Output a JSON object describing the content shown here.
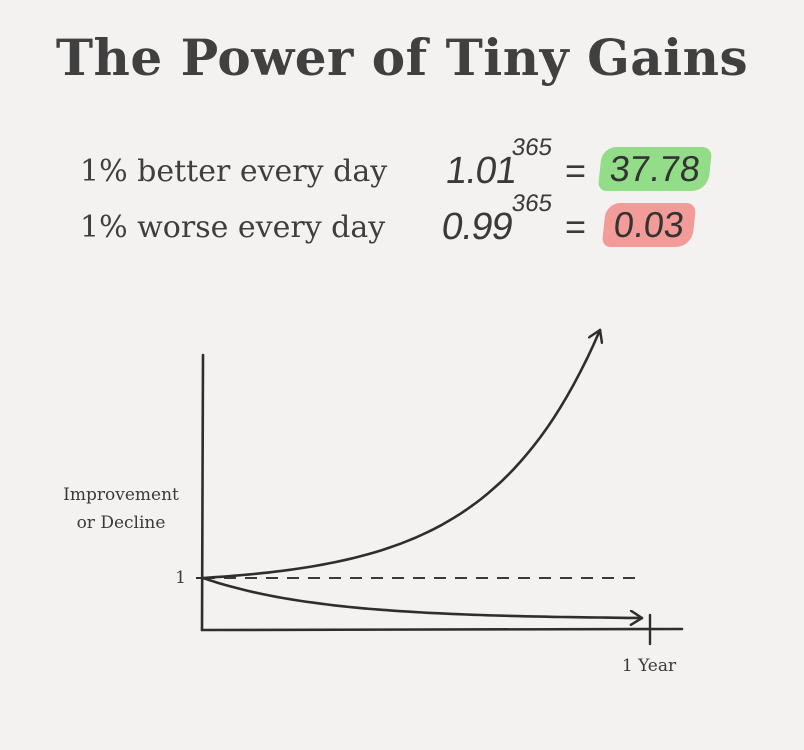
{
  "title": "The Power of Tiny Gains",
  "equations": [
    {
      "label": "1% better every day",
      "base": "1.01",
      "exponent": "365",
      "equals": "=",
      "result": "37.78",
      "highlight": "#93dd88"
    },
    {
      "label": "1% worse every day",
      "base": "0.99",
      "exponent": "365",
      "equals": "=",
      "result": "0.03",
      "highlight": "#f29b98"
    }
  ],
  "chart_data": {
    "type": "line",
    "ylabel_lines": [
      "Improvement",
      "or Decline"
    ],
    "y_tick_label": "1",
    "x_tick_label": "1 Year",
    "baseline": 1,
    "grid": false,
    "series": [
      {
        "daily_factor": 1.01,
        "start": 1,
        "end": 37.78,
        "style": "solid-arrow"
      },
      {
        "daily_factor": 0.99,
        "start": 1,
        "end": 0.03,
        "style": "solid-arrow"
      },
      {
        "daily_factor": 1.0,
        "start": 1,
        "end": 1,
        "style": "dashed"
      }
    ]
  }
}
